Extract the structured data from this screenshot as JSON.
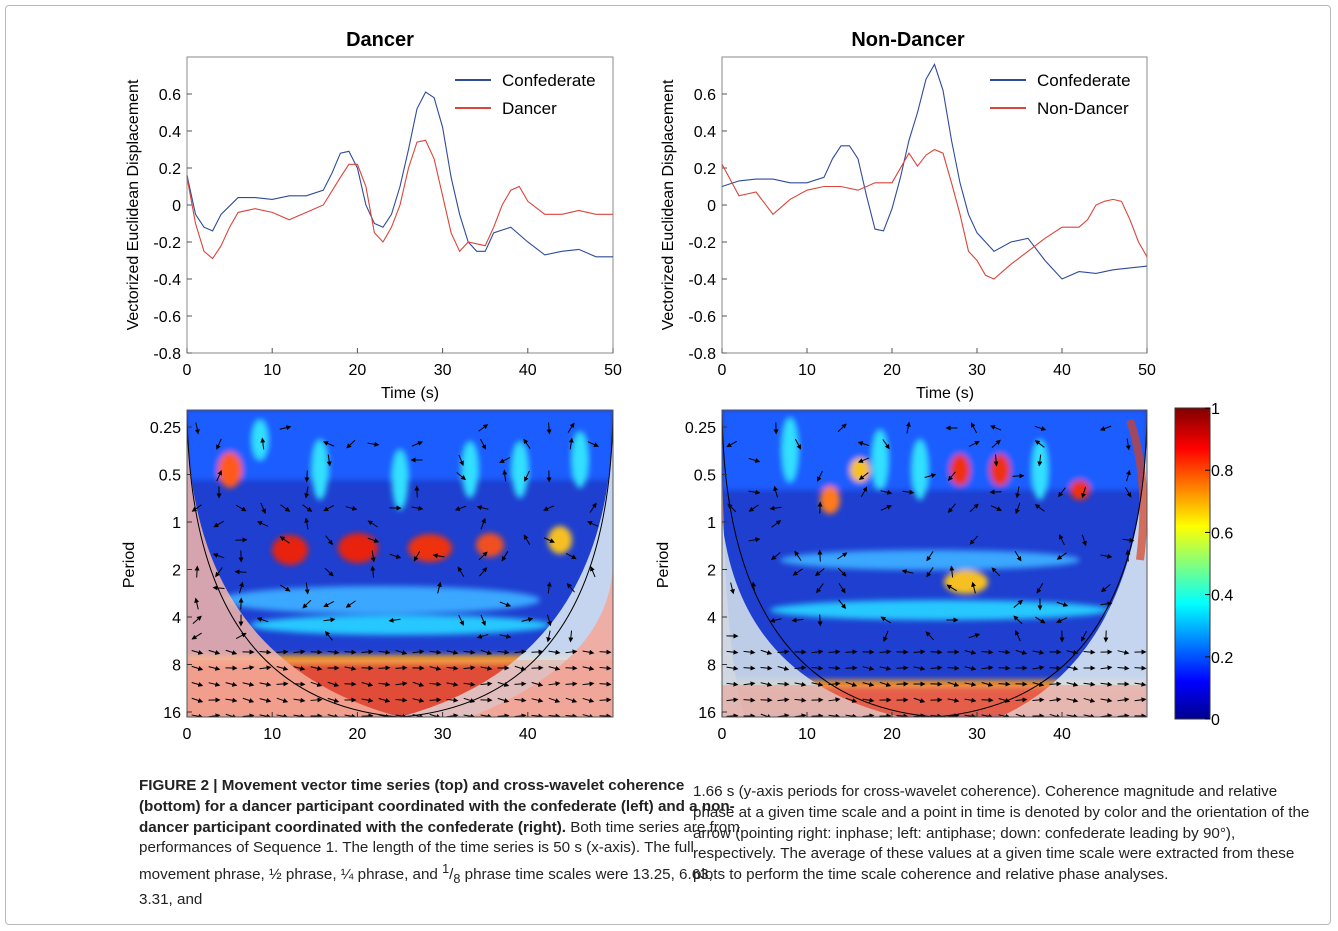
{
  "chart_data": [
    {
      "type": "line",
      "title": "Dancer",
      "xlabel": "Time (s)",
      "ylabel": "Vectorized Euclidean Displacement",
      "xlim": [
        0,
        50
      ],
      "ylim": [
        -0.8,
        0.8
      ],
      "xticks": [
        "0",
        "10",
        "20",
        "30",
        "40",
        "50"
      ],
      "yticks": [
        "0.6",
        "0.4",
        "0.2",
        "0",
        "-0.2",
        "-0.4",
        "-0.6",
        "-0.8"
      ],
      "legend_position": "top-right",
      "series": [
        {
          "name": "Confederate",
          "color": "#2f4b9a",
          "x": [
            0,
            1,
            2,
            3,
            4,
            6,
            8,
            10,
            12,
            14,
            16,
            17,
            18,
            19,
            20,
            21,
            22,
            23,
            24,
            25,
            26,
            27,
            28,
            29,
            30,
            31,
            32,
            33,
            34,
            35,
            36,
            38,
            40,
            42,
            44,
            46,
            48,
            50
          ],
          "y": [
            0.16,
            -0.05,
            -0.12,
            -0.14,
            -0.05,
            0.04,
            0.04,
            0.03,
            0.05,
            0.05,
            0.08,
            0.17,
            0.28,
            0.29,
            0.2,
            0.0,
            -0.1,
            -0.12,
            -0.05,
            0.1,
            0.3,
            0.52,
            0.61,
            0.58,
            0.42,
            0.15,
            -0.05,
            -0.2,
            -0.25,
            -0.25,
            -0.15,
            -0.12,
            -0.2,
            -0.27,
            -0.25,
            -0.24,
            -0.28,
            -0.28
          ]
        },
        {
          "name": "Dancer",
          "color": "#d9453a",
          "x": [
            0,
            1,
            2,
            3,
            4,
            5,
            6,
            8,
            10,
            12,
            14,
            16,
            18,
            19,
            20,
            21,
            22,
            23,
            24,
            25,
            26,
            27,
            28,
            29,
            30,
            31,
            32,
            33,
            34,
            35,
            36,
            37,
            38,
            39,
            40,
            42,
            44,
            46,
            48,
            50
          ],
          "y": [
            0.15,
            -0.1,
            -0.25,
            -0.29,
            -0.22,
            -0.12,
            -0.04,
            -0.02,
            -0.04,
            -0.08,
            -0.04,
            0.0,
            0.15,
            0.22,
            0.22,
            0.1,
            -0.15,
            -0.2,
            -0.12,
            0.0,
            0.2,
            0.34,
            0.35,
            0.25,
            0.05,
            -0.15,
            -0.25,
            -0.2,
            -0.21,
            -0.22,
            -0.12,
            0.0,
            0.08,
            0.1,
            0.02,
            -0.05,
            -0.05,
            -0.03,
            -0.05,
            -0.05
          ]
        }
      ]
    },
    {
      "type": "line",
      "title": "Non-Dancer",
      "xlabel": "Time (s)",
      "ylabel": "Vectorized Euclidean Displacement",
      "xlim": [
        0,
        50
      ],
      "ylim": [
        -0.8,
        0.8
      ],
      "xticks": [
        "0",
        "10",
        "20",
        "30",
        "40",
        "50"
      ],
      "yticks": [
        "0.6",
        "0.4",
        "0.2",
        "0",
        "-0.2",
        "-0.4",
        "-0.6",
        "-0.8"
      ],
      "legend_position": "top-right",
      "series": [
        {
          "name": "Confederate",
          "color": "#2f4b9a",
          "x": [
            0,
            2,
            4,
            6,
            8,
            10,
            12,
            13,
            14,
            15,
            16,
            17,
            18,
            19,
            20,
            21,
            22,
            23,
            24,
            25,
            26,
            27,
            28,
            29,
            30,
            31,
            32,
            34,
            36,
            38,
            40,
            42,
            44,
            46,
            48,
            50
          ],
          "y": [
            0.1,
            0.13,
            0.14,
            0.14,
            0.12,
            0.12,
            0.15,
            0.25,
            0.32,
            0.32,
            0.25,
            0.05,
            -0.13,
            -0.14,
            -0.02,
            0.15,
            0.35,
            0.5,
            0.68,
            0.76,
            0.62,
            0.35,
            0.12,
            -0.05,
            -0.15,
            -0.2,
            -0.25,
            -0.2,
            -0.18,
            -0.3,
            -0.4,
            -0.36,
            -0.37,
            -0.35,
            -0.34,
            -0.33
          ]
        },
        {
          "name": "Non-Dancer",
          "color": "#d9453a",
          "x": [
            0,
            2,
            4,
            6,
            8,
            10,
            12,
            14,
            16,
            18,
            20,
            22,
            23,
            24,
            25,
            26,
            27,
            28,
            29,
            30,
            31,
            32,
            33,
            34,
            36,
            38,
            40,
            42,
            43,
            44,
            45,
            46,
            47,
            48,
            49,
            50
          ],
          "y": [
            0.22,
            0.05,
            0.07,
            -0.05,
            0.03,
            0.08,
            0.1,
            0.1,
            0.08,
            0.12,
            0.12,
            0.28,
            0.21,
            0.27,
            0.3,
            0.28,
            0.12,
            -0.05,
            -0.25,
            -0.3,
            -0.38,
            -0.4,
            -0.36,
            -0.32,
            -0.25,
            -0.18,
            -0.12,
            -0.12,
            -0.08,
            0.0,
            0.02,
            0.03,
            0.02,
            -0.08,
            -0.2,
            -0.28
          ]
        }
      ]
    },
    {
      "type": "heatmap",
      "title": "",
      "ylabel": "Period",
      "xticks": [
        "0",
        "10",
        "20",
        "30",
        "40"
      ],
      "yticks": [
        "0.25",
        "0.5",
        "1",
        "2",
        "4",
        "8",
        "16"
      ],
      "colorbar": {
        "ticks": [
          "0",
          "0.2",
          "0.4",
          "0.6",
          "0.8",
          "1"
        ],
        "colors": [
          "#00008f",
          "#0000ff",
          "#00ffff",
          "#ffff00",
          "#ff0000",
          "#800000"
        ]
      }
    },
    {
      "type": "heatmap",
      "title": "",
      "ylabel": "Period",
      "xticks": [
        "0",
        "10",
        "20",
        "30",
        "40"
      ],
      "yticks": [
        "0.25",
        "0.5",
        "1",
        "2",
        "4",
        "8",
        "16"
      ]
    }
  ],
  "caption": {
    "heading": "FIGURE 2 | Movement vector time series (top) and cross-wavelet coherence (bottom) for a dancer participant coordinated with the confederate (left) and a non-dancer participant coordinated with the confederate (right).",
    "left_body_1": " Both time series are from performances of Sequence 1. The length of the time series is 50 s (x-axis). The full movement phrase, ½ phrase, ¼ phrase, and ",
    "frac_num": "1",
    "frac_den": "8",
    "left_body_2": " phrase time scales were 13.25, 6.63, 3.31, and",
    "right_body": "1.66 s (y-axis periods for cross-wavelet coherence). Coherence magnitude and relative phase at a given time scale and a point in time is denoted by color and the orientation of the arrow (pointing right: inphase; left: antiphase; down: confederate leading by 90°), respectively. The average of these values at a given time scale were extracted from these plots to perform the time scale coherence and relative phase analyses."
  }
}
